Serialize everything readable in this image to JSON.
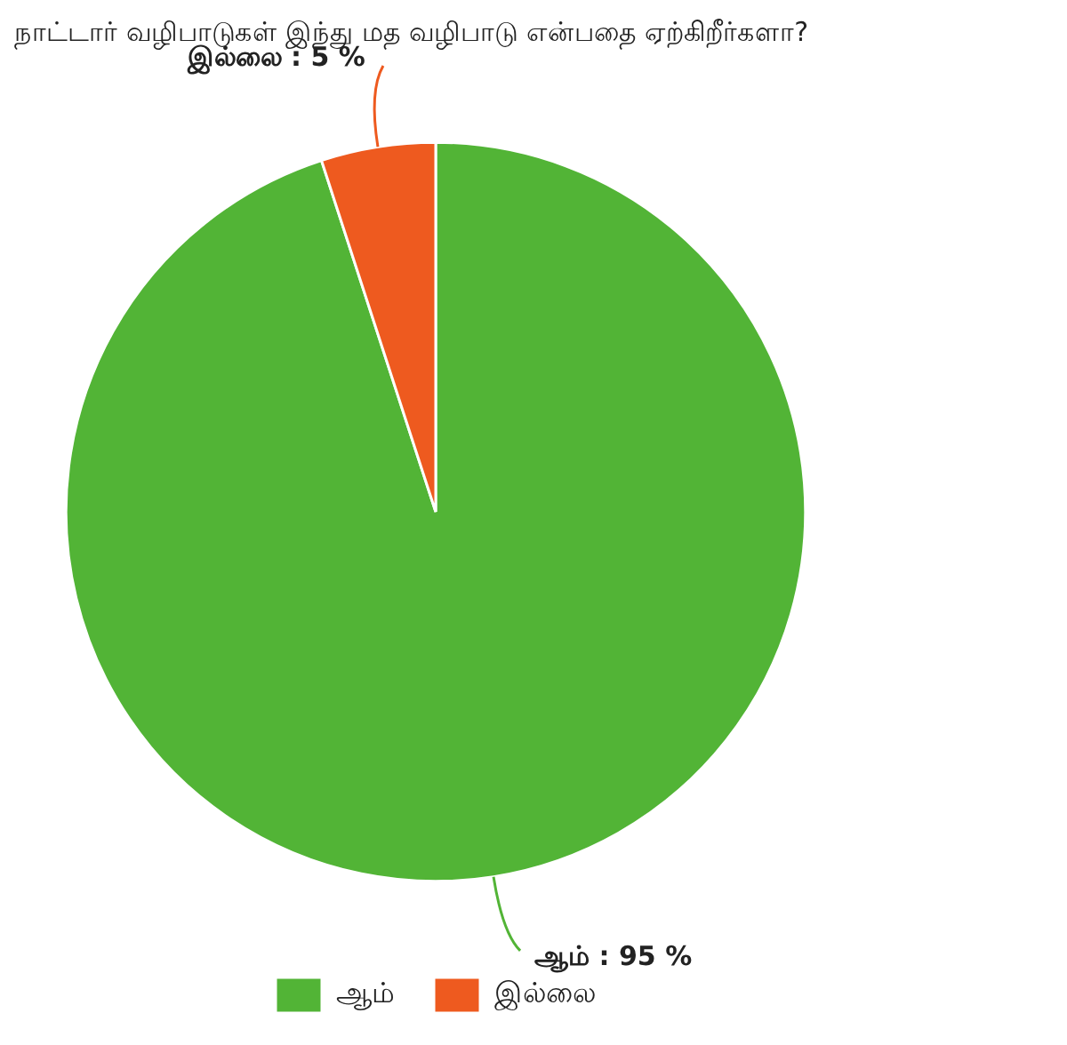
{
  "chart_data": {
    "type": "pie",
    "title": "நாட்டார் வழிபாடுகள் இந்து மத வழிபாடு என்பதை ஏற்கிறீர்களா?",
    "categories": [
      "ஆம்",
      "இல்லை"
    ],
    "values": [
      95,
      5
    ],
    "colors": [
      "#52b436",
      "#ee5a1f"
    ],
    "value_labels": [
      "ஆம் : 95 %",
      "இல்லை : 5 %"
    ],
    "legend": "bottom"
  }
}
